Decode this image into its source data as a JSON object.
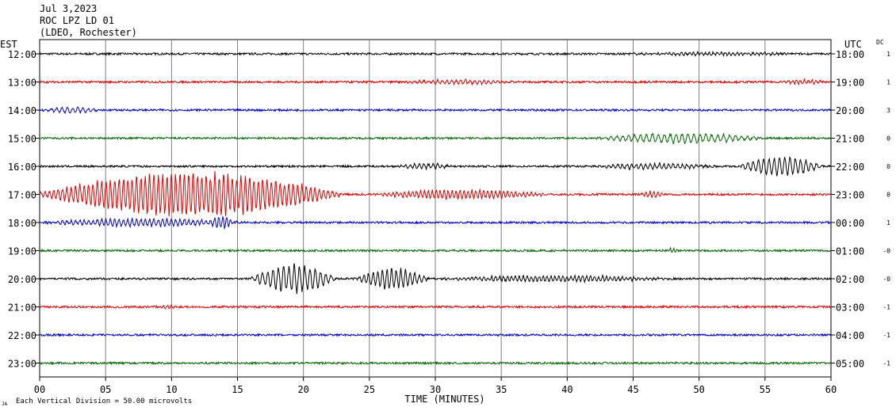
{
  "header": {
    "date": "Jul 3,2023",
    "station": "ROC LPZ LD 01",
    "network": "(LDEO, Rochester)"
  },
  "left_tz": "EST",
  "right_tz": "UTC",
  "dc_label": "DC",
  "footer": {
    "mark": "JA",
    "scale": "Each Vertical Division =   50.00 microvolts"
  },
  "chart_data": {
    "type": "line",
    "title": "",
    "xlabel": "TIME (MINUTES)",
    "xlim": [
      0,
      60
    ],
    "x_ticks": [
      "00",
      "05",
      "10",
      "15",
      "20",
      "25",
      "30",
      "35",
      "40",
      "45",
      "50",
      "55",
      "60"
    ],
    "grid": true,
    "colors": {
      "black": "#000000",
      "red": "#e00000",
      "blue": "#0000c8",
      "green": "#006400"
    },
    "rows": [
      {
        "est": "12:00",
        "utc": "18:00",
        "dc": "1",
        "color": "black",
        "events": [
          {
            "start": 44.0,
            "end": 60.0,
            "amp": 0.2,
            "period": 0.3
          }
        ]
      },
      {
        "est": "13:00",
        "utc": "19:00",
        "dc": "1",
        "color": "red",
        "events": [
          {
            "start": 27.0,
            "end": 37.0,
            "amp": 0.3,
            "period": 0.35
          },
          {
            "start": 56.0,
            "end": 60.0,
            "amp": 0.3,
            "period": 0.3
          }
        ]
      },
      {
        "est": "14:00",
        "utc": "20:00",
        "dc": "3",
        "color": "blue",
        "events": [
          {
            "start": 0.0,
            "end": 5.0,
            "amp": 0.45,
            "period": 0.4
          }
        ]
      },
      {
        "est": "15:00",
        "utc": "21:00",
        "dc": "0",
        "color": "green",
        "events": [
          {
            "start": 42.0,
            "end": 56.0,
            "amp": 0.75,
            "period": 0.45
          }
        ]
      },
      {
        "est": "16:00",
        "utc": "22:00",
        "dc": "0",
        "color": "black",
        "events": [
          {
            "start": 27.0,
            "end": 32.0,
            "amp": 0.4,
            "period": 0.35
          },
          {
            "start": 42.0,
            "end": 52.0,
            "amp": 0.45,
            "period": 0.35
          },
          {
            "start": 53.0,
            "end": 60.0,
            "amp": 1.45,
            "period": 0.4
          }
        ]
      },
      {
        "est": "17:00",
        "utc": "23:00",
        "dc": "0",
        "color": "red",
        "events": [
          {
            "start": 0.0,
            "end": 25.0,
            "amp": 3.3,
            "period": 0.33
          },
          {
            "start": 25.0,
            "end": 40.0,
            "amp": 0.7,
            "period": 0.3
          },
          {
            "start": 45.5,
            "end": 47.5,
            "amp": 0.5,
            "period": 0.3
          }
        ]
      },
      {
        "est": "18:00",
        "utc": "00:00",
        "dc": "1",
        "color": "blue",
        "events": [
          {
            "start": 0.0,
            "end": 17.0,
            "amp": 0.6,
            "period": 0.33
          },
          {
            "start": 13.0,
            "end": 15.0,
            "amp": 0.9,
            "period": 0.3
          }
        ]
      },
      {
        "est": "19:00",
        "utc": "01:00",
        "dc": "-0",
        "color": "green",
        "events": [
          {
            "start": 47.5,
            "end": 48.5,
            "amp": 0.3,
            "period": 0.25
          }
        ]
      },
      {
        "est": "20:00",
        "utc": "02:00",
        "dc": "-0",
        "color": "black",
        "events": [
          {
            "start": 16.0,
            "end": 23.0,
            "amp": 2.1,
            "period": 0.4
          },
          {
            "start": 24.0,
            "end": 30.0,
            "amp": 1.6,
            "period": 0.35
          },
          {
            "start": 30.0,
            "end": 50.0,
            "amp": 0.45,
            "period": 0.3
          }
        ]
      },
      {
        "est": "21:00",
        "utc": "03:00",
        "dc": "-1",
        "color": "red",
        "events": [
          {
            "start": 9.0,
            "end": 10.5,
            "amp": 0.25,
            "period": 0.3
          }
        ]
      },
      {
        "est": "22:00",
        "utc": "04:00",
        "dc": "-1",
        "color": "blue",
        "events": []
      },
      {
        "est": "23:00",
        "utc": "05:00",
        "dc": "-1",
        "color": "green",
        "events": []
      }
    ]
  }
}
